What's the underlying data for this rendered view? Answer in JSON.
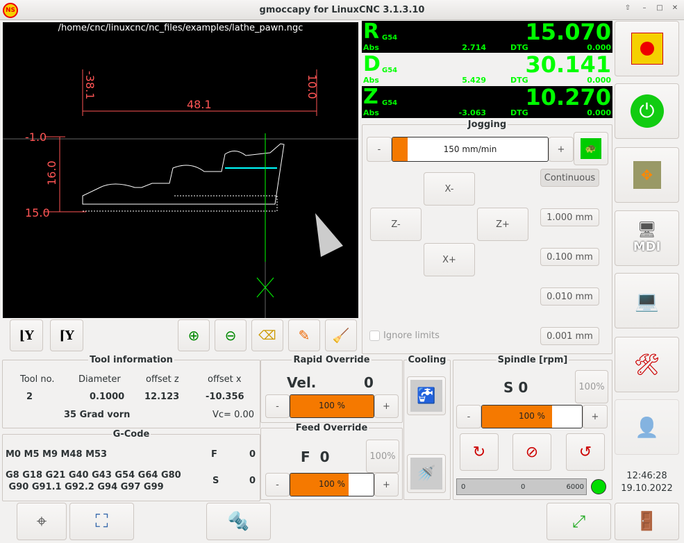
{
  "window": {
    "title": "gmoccapy for LinuxCNC  3.1.3.10",
    "logo_text": "NS"
  },
  "preview": {
    "file_path": "/home/cnc/linuxcnc/nc_files/examples/lathe_pawn.ngc",
    "dims": {
      "top_left": "-38.1",
      "top_right": "10.0",
      "width": "48.1",
      "left_top": "-1.0",
      "left_height": "16.0",
      "left_bottom": "15.0"
    },
    "toolbar": [
      "view-y-icon",
      "view-y2-icon",
      "zoom-in-icon",
      "zoom-out-icon",
      "clear-view-icon",
      "pencil-icon",
      "broom-icon"
    ]
  },
  "dro": [
    {
      "axis": "R",
      "system": "G54",
      "value": "15.070",
      "abs_label": "Abs",
      "abs": "2.714",
      "dtg_label": "DTG",
      "dtg": "0.000",
      "bg": "#000000"
    },
    {
      "axis": "D",
      "system": "G54",
      "value": "30.141",
      "abs_label": "Abs",
      "abs": "5.429",
      "dtg_label": "DTG",
      "dtg": "0.000",
      "bg": "#f2f1f0"
    },
    {
      "axis": "Z",
      "system": "G54",
      "value": "10.270",
      "abs_label": "Abs",
      "abs": "-3.063",
      "dtg_label": "DTG",
      "dtg": "0.000",
      "bg": "#000000"
    }
  ],
  "jogging": {
    "title": "Jogging",
    "minus": "-",
    "plus": "+",
    "speed": "150 mm/min",
    "speed_fraction": 0.1,
    "x_minus": "X-",
    "x_plus": "X+",
    "z_minus": "Z-",
    "z_plus": "Z+",
    "ignore_limits": "Ignore limits",
    "increments": [
      "Continuous",
      "1.000 mm",
      "0.100 mm",
      "0.010 mm",
      "0.001 mm"
    ]
  },
  "tool": {
    "title": "Tool information",
    "headers": [
      "Tool no.",
      "Diameter",
      "offset z",
      "offset x"
    ],
    "values": [
      "2",
      "0.1000",
      "12.123",
      "-10.356"
    ],
    "description": "35 Grad vorn",
    "vc": "Vc= 0.00"
  },
  "gcode": {
    "title": "G-Code",
    "mcodes": "M0 M5 M9 M48 M53",
    "gcodes_1": "G8 G18 G21 G40 G43 G54 G64 G80",
    "gcodes_2": " G90 G91.1 G92.2 G94 G97 G99",
    "f_label": "F",
    "f": "0",
    "s_label": "S",
    "s": "0"
  },
  "rapid": {
    "title": "Rapid Override",
    "vel_label": "Vel.",
    "vel": "0",
    "percent": "100 %",
    "fraction": 1.0,
    "minus": "-",
    "plus": "+"
  },
  "feed": {
    "title": "Feed Override",
    "f_label": "F  0",
    "reset": "100%",
    "percent": "100 %",
    "fraction": 0.7,
    "minus": "-",
    "plus": "+"
  },
  "cooling": {
    "title": "Cooling"
  },
  "spindle": {
    "title": "Spindle [rpm]",
    "s_label": "S 0",
    "reset": "100%",
    "percent": "100 %",
    "fraction": 0.7,
    "minus": "-",
    "plus": "+",
    "scale_min": "0",
    "scale_value": "0",
    "scale_max": "6000",
    "status_color": "#00dd00"
  },
  "clock": {
    "time": "12:46:28",
    "date": "19.10.2022"
  },
  "right_buttons": [
    "estop-icon",
    "power-icon",
    "jog-icon",
    "mdi-icon",
    "auto-icon",
    "settings-icon",
    "user-tabs-icon"
  ],
  "mdi_label": "MDI",
  "colors": {
    "accent": "#f57900",
    "dro_green": "#00ff00"
  }
}
